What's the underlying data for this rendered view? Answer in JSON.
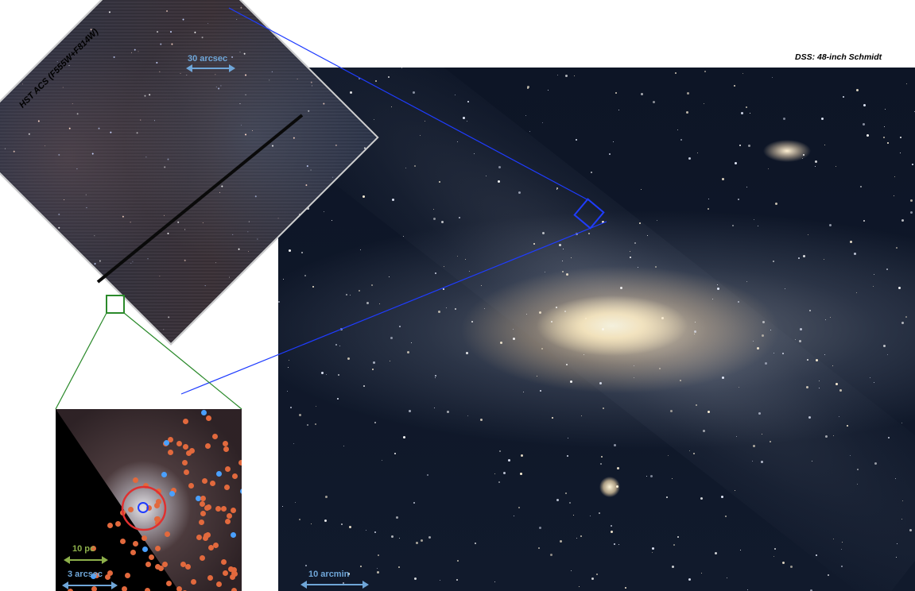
{
  "labels": {
    "dss": "DSS: 48-inch Schmidt",
    "hst": "HST ACS (F555W+F814W)",
    "hst_scale": "30 arcsec",
    "main_scale": "10 arcmin",
    "inset_scale_pc": "10 pc",
    "inset_scale_arcsec": "3 arcsec"
  },
  "colors": {
    "zoom_box_main": "#1f3cff",
    "zoom_box_inset": "#2b8a2b",
    "red_circle": "#e03030",
    "blue_circle": "#1f3cff",
    "scale_arrow_blue": "#6fa6d8",
    "scale_arrow_green": "#8db04a"
  }
}
